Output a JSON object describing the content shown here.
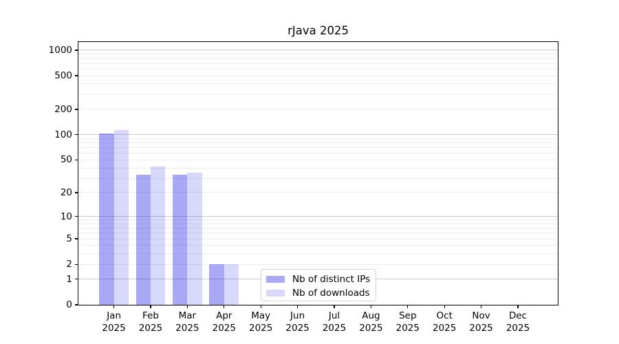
{
  "title": "rJava 2025",
  "chart_data": {
    "type": "bar",
    "title": "rJava 2025",
    "categories": [
      "Jan 2025",
      "Feb 2025",
      "Mar 2025",
      "Apr 2025",
      "May 2025",
      "Jun 2025",
      "Jul 2025",
      "Aug 2025",
      "Sep 2025",
      "Oct 2025",
      "Nov 2025",
      "Dec 2025"
    ],
    "series": [
      {
        "name": "Nb of distinct IPs",
        "color": "rgba(15,15,225,0.36)",
        "solid_color": "#a8a8f4",
        "values": [
          103,
          33,
          33,
          2,
          0,
          0,
          0,
          0,
          0,
          0,
          0,
          0
        ]
      },
      {
        "name": "Nb of downloads",
        "color": "rgba(15,15,225,0.16)",
        "solid_color": "#d8d8fa",
        "values": [
          113,
          42,
          35,
          2,
          0,
          0,
          0,
          0,
          0,
          0,
          0,
          0
        ]
      }
    ],
    "yscale": "log1p",
    "y_ticks": [
      0,
      1,
      2,
      5,
      10,
      20,
      50,
      100,
      200,
      500,
      1000
    ],
    "ylim": [
      0,
      1250
    ],
    "xlabel": "",
    "ylabel": "",
    "grid": true,
    "legend_position": "lower-center-inside"
  },
  "colors": {
    "grid_major": "#c9c9c9",
    "grid_minor": "#ededed",
    "axis": "#000000",
    "background": "#ffffff"
  }
}
